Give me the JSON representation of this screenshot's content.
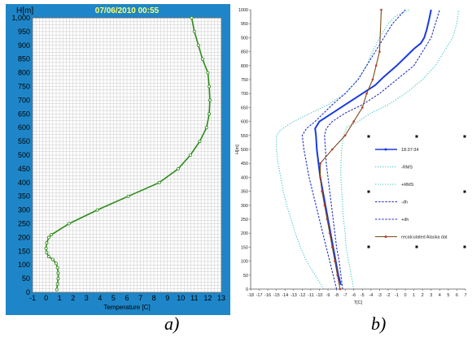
{
  "captions": {
    "left": "a)",
    "right": "b)"
  },
  "chart_data": [
    {
      "type": "line",
      "title": "07/06/2010 00:55",
      "ylabel": "H[m]",
      "xlabel": "Temperature [C]",
      "xlim": [
        -1,
        13
      ],
      "ylim": [
        0,
        1000
      ],
      "grid": true,
      "x_ticks": [
        -1,
        0,
        1,
        2,
        3,
        4,
        5,
        6,
        7,
        8,
        9,
        10,
        11,
        12,
        13
      ],
      "y_ticks": [
        0,
        50,
        100,
        150,
        200,
        250,
        300,
        350,
        400,
        450,
        500,
        550,
        600,
        650,
        700,
        750,
        800,
        850,
        900,
        950,
        1000
      ],
      "y_tick_labels": [
        "0",
        "50",
        "100",
        "150",
        "200",
        "250",
        "300",
        "350",
        "400",
        "450",
        "500",
        "550",
        "600",
        "650",
        "700",
        "750",
        "800",
        "850",
        "900",
        "950",
        "1,000"
      ],
      "colors": {
        "frame": "#1e86c8",
        "title": "#ffff66",
        "line": "#2e8b1a",
        "grid": "#c8c8c8"
      },
      "series": [
        {
          "x": [
            0.8,
            0.85,
            0.9,
            0.9,
            0.85,
            0.75,
            0.5,
            0.2,
            0.05,
            0.0,
            0.05,
            0.2,
            0.4,
            1.7,
            3.8,
            6.1,
            8.4,
            9.8,
            10.7,
            11.4,
            11.9,
            12.1,
            12.15,
            12.1,
            12.0,
            11.6,
            11.3,
            11.0,
            10.8
          ],
          "y": [
            10,
            30,
            50,
            70,
            90,
            105,
            120,
            130,
            145,
            160,
            180,
            200,
            210,
            250,
            300,
            350,
            400,
            450,
            500,
            550,
            600,
            650,
            700,
            750,
            800,
            850,
            900,
            950,
            1000
          ]
        }
      ]
    },
    {
      "type": "line",
      "xlabel": "T[C]",
      "ylabel": "H[m]",
      "xlim": [
        -18,
        7
      ],
      "ylim": [
        0,
        1000
      ],
      "grid": false,
      "legend": "lower-right",
      "x_ticks": [
        -18,
        -17,
        -16,
        -15,
        -14,
        -13,
        -12,
        -11,
        -10,
        -9,
        -8,
        -7,
        -6,
        -5,
        -4,
        -3,
        -2,
        -1,
        0,
        1,
        2,
        3,
        4,
        5,
        6,
        7
      ],
      "y_ticks": [
        0,
        50,
        100,
        150,
        200,
        250,
        300,
        350,
        400,
        450,
        500,
        550,
        600,
        650,
        700,
        750,
        800,
        850,
        900,
        950,
        1000
      ],
      "series": [
        {
          "name": "18:37:34",
          "color": "#1a3adf",
          "style": "solid",
          "x": [
            -7.5,
            -7.8,
            -8.1,
            -8.4,
            -8.7,
            -9.0,
            -9.3,
            -9.6,
            -9.9,
            -10.1,
            -10.3,
            -10.4,
            -10.5,
            -10.0,
            -8.5,
            -7.0,
            -5.0,
            -3.5,
            -2.5,
            -1.0,
            0.0,
            1.0,
            1.8,
            2.2,
            2.5,
            2.8,
            3.0
          ],
          "y": [
            15,
            50,
            100,
            150,
            200,
            250,
            300,
            350,
            400,
            450,
            500,
            550,
            575,
            600,
            630,
            660,
            700,
            730,
            760,
            800,
            830,
            860,
            880,
            900,
            930,
            970,
            1000
          ]
        },
        {
          "name": "-RMS",
          "color": "#3ec4c4",
          "style": "dotted",
          "x": [
            -9.5,
            -10.5,
            -11.5,
            -12.2,
            -12.8,
            -13.3,
            -13.8,
            -14.2,
            -14.5,
            -14.8,
            -15.0,
            -15.0,
            -14.5,
            -13.0,
            -11.0,
            -9.0,
            -7.0,
            -5.5,
            -4.5,
            -3.8,
            -3.0,
            -2.0,
            -1.0,
            0.5
          ],
          "y": [
            0,
            50,
            100,
            150,
            200,
            250,
            300,
            350,
            400,
            450,
            500,
            550,
            570,
            600,
            630,
            660,
            700,
            750,
            800,
            850,
            900,
            950,
            980,
            1000
          ]
        },
        {
          "name": "+RMS",
          "color": "#3ec4c4",
          "style": "dotted",
          "x": [
            -6.0,
            -6.3,
            -6.6,
            -6.9,
            -7.0,
            -7.2,
            -7.3,
            -7.4,
            -7.5,
            -7.5,
            -7.4,
            -7.2,
            -6.8,
            -5.5,
            -4.0,
            -2.0,
            0.0,
            2.0,
            3.5,
            4.5,
            5.5,
            6.0,
            6.2
          ],
          "y": [
            0,
            50,
            100,
            150,
            200,
            250,
            300,
            350,
            400,
            450,
            500,
            550,
            580,
            600,
            630,
            660,
            700,
            750,
            800,
            850,
            900,
            950,
            1000
          ]
        },
        {
          "name": "-dh",
          "color": "#2030c0",
          "style": "dashed",
          "x": [
            -8.0,
            -8.4,
            -8.8,
            -9.2,
            -9.6,
            -10.0,
            -10.4,
            -10.8,
            -11.2,
            -11.5,
            -11.8,
            -12.0,
            -11.5,
            -10.5,
            -9.5,
            -8.5,
            -7.0,
            -5.5,
            -4.5,
            -3.5,
            -2.5,
            -1.5,
            0.0
          ],
          "y": [
            0,
            50,
            100,
            150,
            200,
            250,
            300,
            350,
            400,
            450,
            500,
            550,
            575,
            600,
            630,
            660,
            700,
            750,
            800,
            850,
            900,
            950,
            1000
          ]
        },
        {
          "name": "+dh",
          "color": "#2030c0",
          "style": "dashed",
          "x": [
            -7.3,
            -7.5,
            -7.7,
            -8.0,
            -8.2,
            -8.4,
            -8.6,
            -8.8,
            -9.0,
            -9.2,
            -9.3,
            -9.4,
            -9.2,
            -8.5,
            -7.0,
            -5.0,
            -3.0,
            -1.0,
            1.0,
            2.0,
            3.0,
            3.5,
            4.0
          ],
          "y": [
            0,
            50,
            100,
            150,
            200,
            250,
            300,
            350,
            400,
            450,
            500,
            550,
            575,
            600,
            630,
            660,
            700,
            750,
            800,
            850,
            900,
            950,
            1000
          ]
        },
        {
          "name": "recalculated Alaska dat",
          "color": "#7a4a1a",
          "style": "solid-marker",
          "x": [
            -7.6,
            -7.9,
            -8.2,
            -8.5,
            -8.8,
            -9.1,
            -9.4,
            -9.7,
            -9.9,
            -9.9,
            -8.5,
            -7.0,
            -6.0,
            -5.0,
            -4.5,
            -3.8,
            -3.4,
            -3.0,
            -2.8
          ],
          "y": [
            0,
            50,
            100,
            150,
            200,
            250,
            300,
            350,
            400,
            450,
            500,
            550,
            600,
            650,
            700,
            750,
            800,
            850,
            1000
          ]
        }
      ]
    }
  ]
}
